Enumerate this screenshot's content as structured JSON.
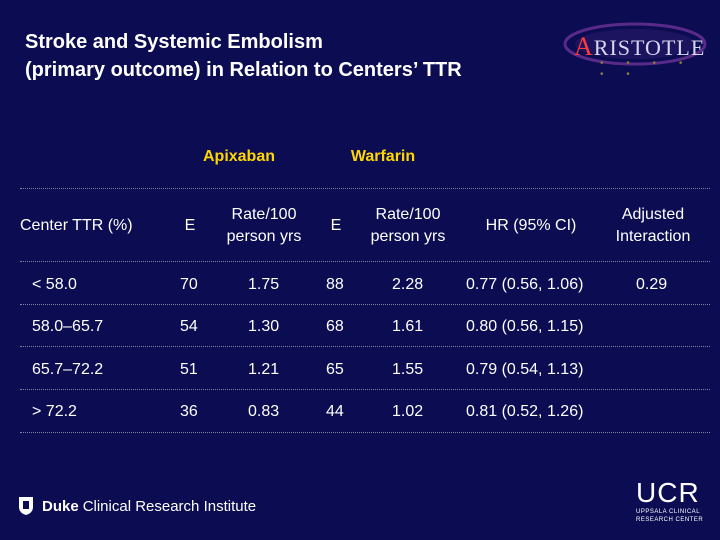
{
  "title": {
    "line1": "Stroke and Systemic Embolism",
    "line2": "(primary outcome) in Relation to Centers’ TTR"
  },
  "logo": {
    "text_first": "A",
    "text_rest": "RISTOTLE",
    "dots": "• • • • • •"
  },
  "groups": {
    "apixaban": "Apixaban",
    "warfarin": "Warfarin"
  },
  "table": {
    "headers": {
      "center": "Center TTR (%)",
      "apix_e": "E",
      "apix_rate_line1": "Rate/100",
      "apix_rate_line2": "person yrs",
      "warf_e": "E",
      "warf_rate_line1": "Rate/100",
      "warf_rate_line2": "person yrs",
      "hr": "HR (95% CI)",
      "adj_line1": "Adjusted",
      "adj_line2": "Interaction"
    },
    "rows": [
      {
        "center": "< 58.0",
        "apix_e": "70",
        "apix_rate": "1.75",
        "warf_e": "88",
        "warf_rate": "2.28",
        "hr": "0.77 (0.56, 1.06)",
        "adj": "0.29"
      },
      {
        "center": "58.0–65.7",
        "apix_e": "54",
        "apix_rate": "1.30",
        "warf_e": "68",
        "warf_rate": "1.61",
        "hr": "0.80 (0.56, 1.15)",
        "adj": ""
      },
      {
        "center": "65.7–72.2",
        "apix_e": "51",
        "apix_rate": "1.21",
        "warf_e": "65",
        "warf_rate": "1.55",
        "hr": "0.79 (0.54, 1.13)",
        "adj": ""
      },
      {
        "center": "> 72.2",
        "apix_e": "36",
        "apix_rate": "0.83",
        "warf_e": "44",
        "warf_rate": "1.02",
        "hr": "0.81 (0.52, 1.26)",
        "adj": ""
      }
    ]
  },
  "footer": {
    "duke_bold": "Duke",
    "duke_rest": "Clinical Research Institute",
    "ucr_big": "UCR",
    "ucr_line1": "UPPSALA CLINICAL",
    "ucr_line2": "RESEARCH CENTER"
  },
  "colors": {
    "background": "#0c0c52",
    "group_heading": "#ffd700",
    "text": "#ffffff"
  }
}
